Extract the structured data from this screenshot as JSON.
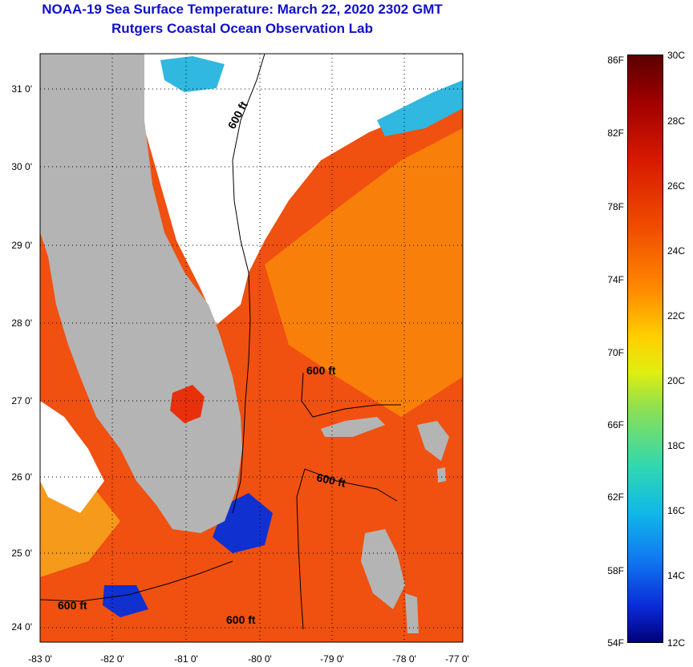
{
  "title": {
    "line1": "NOAA-19 Sea Surface Temperature:  March 22, 2020 2302 GMT",
    "line2": "Rutgers Coastal Ocean Observation Lab"
  },
  "map": {
    "lat_labels": [
      "31 0'",
      "30 0'",
      "29 0'",
      "28 0'",
      "27 0'",
      "26 0'",
      "25 0'",
      "24 0'"
    ],
    "lon_labels": [
      "-83 0'",
      "-82 0'",
      "-81 0'",
      "-80 0'",
      "-79 0'",
      "-78 0'",
      "-77 0'"
    ],
    "contour_label": "600 ft",
    "colors": {
      "land": "#b4b4b4",
      "cloud": "#ffffff",
      "warm_water": "#f05010",
      "hot_water": "#e8300a",
      "orange_water": "#f8800a",
      "cold_water": "#1030d0",
      "cyan_water": "#30b8e0"
    }
  },
  "colorbar": {
    "fahrenheit": [
      "86F",
      "82F",
      "78F",
      "74F",
      "70F",
      "66F",
      "62F",
      "58F",
      "54F"
    ],
    "celsius": [
      "30C",
      "28C",
      "26C",
      "24C",
      "22C",
      "20C",
      "18C",
      "16C",
      "14C",
      "12C"
    ]
  }
}
